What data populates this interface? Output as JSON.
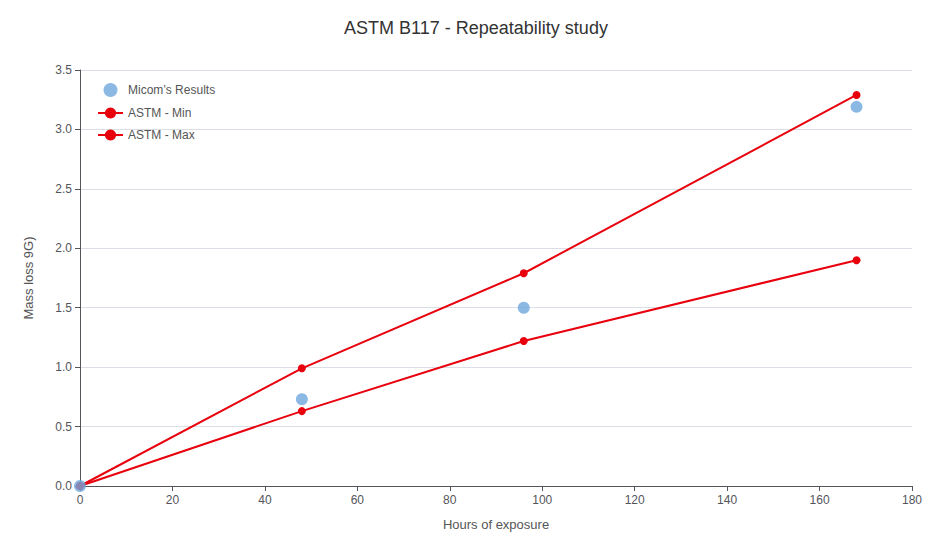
{
  "chart_data": {
    "type": "line",
    "title": "ASTM B117 - Repeatability study",
    "xlabel": "Hours of exposure",
    "ylabel": "Mass loss 9G)",
    "xlim": [
      0,
      180
    ],
    "ylim": [
      0,
      3.5
    ],
    "xticks": [
      0,
      20,
      40,
      60,
      80,
      100,
      120,
      140,
      160,
      180
    ],
    "yticks": [
      {
        "value": 0,
        "label": "0.0"
      },
      {
        "value": 0.5,
        "label": "0.5"
      },
      {
        "value": 1.0,
        "label": "1.0"
      },
      {
        "value": 1.5,
        "label": "1.5"
      },
      {
        "value": 2.0,
        "label": "2.0"
      },
      {
        "value": 2.5,
        "label": "2.5"
      },
      {
        "value": 3.0,
        "label": "3.0"
      },
      {
        "value": 3.5,
        "label": "3.5"
      }
    ],
    "grid": true,
    "legend": "upper left",
    "series": [
      {
        "name": "Micom’s Results",
        "type": "scatter",
        "marker": "circle",
        "color": "#6fa8dc",
        "x": [
          0,
          48,
          96,
          168
        ],
        "values": [
          0,
          0.73,
          1.5,
          3.19
        ]
      },
      {
        "name": "ASTM - Min",
        "type": "line",
        "marker": "circle",
        "line_style": "solid",
        "color": "#e8000d",
        "x": [
          0,
          48,
          96,
          168
        ],
        "values": [
          0,
          0.63,
          1.22,
          1.9
        ]
      },
      {
        "name": "ASTM - Max",
        "type": "line",
        "marker": "circle",
        "line_style": "solid",
        "color": "#e8000d",
        "x": [
          0,
          48,
          96,
          168
        ],
        "values": [
          0,
          0.99,
          1.79,
          3.29
        ]
      }
    ]
  }
}
